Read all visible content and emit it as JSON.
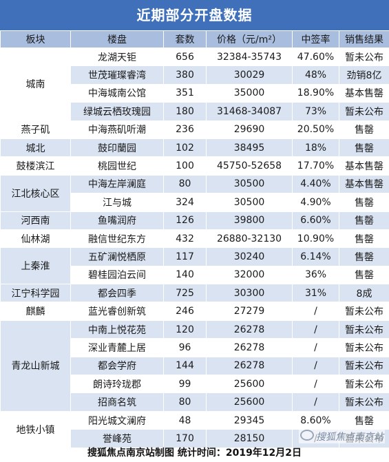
{
  "title": "近期部分开盘数据",
  "headers": [
    "板块",
    "楼盘",
    "套数",
    "价格（元/m²）",
    "中签率",
    "销售结果"
  ],
  "blocks": [
    {
      "name": "城南",
      "shade": false,
      "rows": [
        {
          "project": "龙湖天钜",
          "units": "656",
          "price": "32384-35743",
          "rate": "47.60%",
          "result": "暂未公布"
        },
        {
          "project": "世茂璀璨睿湾",
          "units": "380",
          "price": "30029",
          "rate": "48%",
          "result": "劲销8亿"
        },
        {
          "project": "中海城南公馆",
          "units": "351",
          "price": "35000",
          "rate": "18.90%",
          "result": "基本售罄"
        },
        {
          "project": "绿城云栖玫瑰园",
          "units": "180",
          "price": "31468-34087",
          "rate": "73%",
          "result": "暂未公布"
        }
      ]
    },
    {
      "name": "燕子矶",
      "shade": false,
      "rows": [
        {
          "project": "中海燕矶听潮",
          "units": "236",
          "price": "29690",
          "rate": "20.50%",
          "result": "售罄"
        }
      ]
    },
    {
      "name": "城北",
      "shade": true,
      "rows": [
        {
          "project": "鼓印蘭园",
          "units": "102",
          "price": "38495",
          "rate": "18%",
          "result": "售罄"
        }
      ]
    },
    {
      "name": "鼓楼滨江",
      "shade": false,
      "rows": [
        {
          "project": "桃园世纪",
          "units": "100",
          "price": "45750-52658",
          "rate": "17.70%",
          "result": "基本售罄"
        }
      ]
    },
    {
      "name": "江北核心区",
      "shade": true,
      "rows": [
        {
          "project": "中海左岸澜庭",
          "units": "80",
          "price": "30500",
          "rate": "4.40%",
          "result": "基本售罄"
        },
        {
          "project": "江与城",
          "units": "324",
          "price": "30500",
          "rate": "4.90%",
          "result": "售罄"
        }
      ]
    },
    {
      "name": "河西南",
      "shade": true,
      "rows": [
        {
          "project": "鱼嘴润府",
          "units": "126",
          "price": "39800",
          "rate": "6.60%",
          "result": "售罄"
        }
      ]
    },
    {
      "name": "仙林湖",
      "shade": false,
      "rows": [
        {
          "project": "融信世纪东方",
          "units": "432",
          "price": "26880-32130",
          "rate": "10.90%",
          "result": "售罄"
        }
      ]
    },
    {
      "name": "上秦淮",
      "shade": true,
      "rows": [
        {
          "project": "五矿澜悦栖原",
          "units": "117",
          "price": "30240",
          "rate": "6.14%",
          "result": "售罄"
        },
        {
          "project": "碧桂园泊云间",
          "units": "140",
          "price": "32000",
          "rate": "36%",
          "result": "售罄"
        }
      ]
    },
    {
      "name": "江宁科学园",
      "shade": true,
      "rows": [
        {
          "project": "都会四季",
          "units": "725",
          "price": "30300",
          "rate": "31%",
          "result": "8成"
        }
      ]
    },
    {
      "name": "麒麟",
      "shade": false,
      "rows": [
        {
          "project": "蓝光睿创新筑",
          "units": "246",
          "price": "27279",
          "rate": "/",
          "result": "暂未公布"
        }
      ]
    },
    {
      "name": "青龙山新城",
      "shade": false,
      "rows": [
        {
          "project": "中南上悦花苑",
          "units": "120",
          "price": "26278",
          "rate": "/",
          "result": "暂未公布"
        },
        {
          "project": "深业青麓上居",
          "units": "96",
          "price": "26278",
          "rate": "/",
          "result": "暂未公布"
        },
        {
          "project": "都会学府",
          "units": "144",
          "price": "26278",
          "rate": "/",
          "result": "暂未公布"
        },
        {
          "project": "朗诗玲珑郡",
          "units": "99",
          "price": "25600",
          "rate": "/",
          "result": "暂未公布"
        },
        {
          "project": "招商名筑",
          "units": "80",
          "price": "25600",
          "rate": "/",
          "result": "暂未公布"
        }
      ]
    },
    {
      "name": "地铁小镇",
      "shade": false,
      "rows": [
        {
          "project": "阳光城文澜府",
          "units": "48",
          "price": "29345",
          "rate": "8.60%",
          "result": "售罄"
        },
        {
          "project": "誉峰苑",
          "units": "170",
          "price": "28150",
          "rate": "/",
          "result": "暂未公布"
        }
      ]
    }
  ],
  "footer": "搜狐焦点南京站制图 统计时间：2019年12月2日",
  "watermark": "搜狐焦点南京站"
}
